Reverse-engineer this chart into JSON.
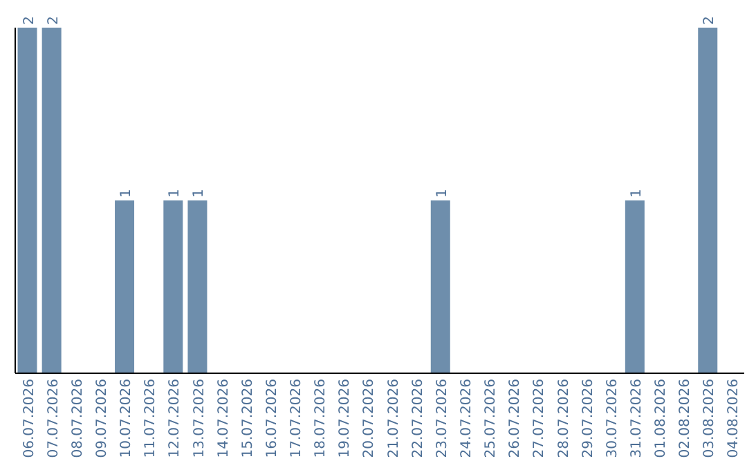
{
  "chart_data": {
    "type": "bar",
    "categories": [
      "06.07.2026",
      "07.07.2026",
      "08.07.2026",
      "09.07.2026",
      "10.07.2026",
      "11.07.2026",
      "12.07.2026",
      "13.07.2026",
      "14.07.2026",
      "15.07.2026",
      "16.07.2026",
      "17.07.2026",
      "18.07.2026",
      "19.07.2026",
      "20.07.2026",
      "21.07.2026",
      "22.07.2026",
      "23.07.2026",
      "24.07.2026",
      "25.07.2026",
      "26.07.2026",
      "27.07.2026",
      "28.07.2026",
      "29.07.2026",
      "30.07.2026",
      "31.07.2026",
      "01.08.2026",
      "02.08.2026",
      "03.08.2026",
      "04.08.2026"
    ],
    "values": [
      2,
      2,
      0,
      0,
      1,
      0,
      1,
      1,
      0,
      0,
      0,
      0,
      0,
      0,
      0,
      0,
      0,
      1,
      0,
      0,
      0,
      0,
      0,
      0,
      0,
      1,
      0,
      0,
      2,
      0
    ],
    "value_labels": [
      "2",
      "2",
      null,
      null,
      "1",
      null,
      "1",
      "1",
      null,
      null,
      null,
      null,
      null,
      null,
      null,
      null,
      null,
      "1",
      null,
      null,
      null,
      null,
      null,
      null,
      null,
      "1",
      null,
      null,
      "2",
      null
    ],
    "color": "#6e8eac",
    "ylim": [
      0,
      2
    ],
    "tick_labels": "x",
    "grid": false,
    "legend": false
  }
}
